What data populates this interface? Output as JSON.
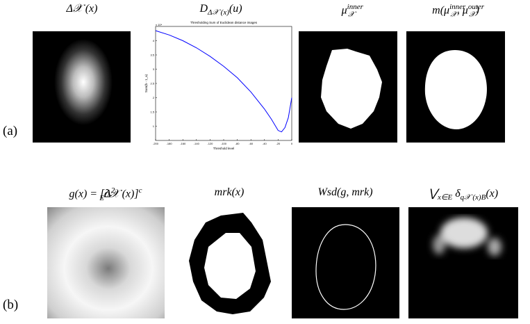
{
  "labels": {
    "a": "(a)",
    "b": "(b)"
  },
  "row_a": [
    {
      "title": [
        {
          "text": "Δ𝒳 ",
          "pos": "base"
        },
        {
          "text": "(x)",
          "pos": "base"
        }
      ]
    },
    {
      "title": [
        {
          "text": "D",
          "pos": "base"
        },
        {
          "text": "Δ𝒳 (x)",
          "pos": "sub"
        },
        {
          "text": "(u)",
          "pos": "base"
        }
      ]
    },
    {
      "title": [
        {
          "text": "μ",
          "pos": "base"
        },
        {
          "text": "inner",
          "pos": "sup"
        },
        {
          "text": "𝒳",
          "pos": "sub"
        }
      ]
    },
    {
      "title": [
        {
          "text": "m(μ",
          "pos": "base"
        },
        {
          "text": "inner",
          "pos": "sup"
        },
        {
          "text": "𝒳",
          "pos": "sub"
        },
        {
          "text": ", μ",
          "pos": "base"
        },
        {
          "text": "outer",
          "pos": "sup"
        },
        {
          "text": "𝒳",
          "pos": "sub"
        },
        {
          "text": ")",
          "pos": "base"
        }
      ]
    }
  ],
  "row_b": [
    {
      "title": [
        {
          "text": "g(x) = [Δ",
          "pos": "base"
        },
        {
          "text": "2",
          "pos": "sup"
        },
        {
          "text": "E",
          "pos": "sub"
        },
        {
          "text": "∂𝒳 (x)]",
          "pos": "base"
        },
        {
          "text": "c",
          "pos": "sup"
        }
      ]
    },
    {
      "title": [
        {
          "text": "mrk(x)",
          "pos": "base"
        }
      ]
    },
    {
      "title": [
        {
          "text": "Wsd(g, mrk)",
          "pos": "base"
        }
      ]
    },
    {
      "title": [
        {
          "text": "⋁",
          "pos": "base"
        },
        {
          "text": "x∈E",
          "pos": "sub"
        },
        {
          "text": " δ",
          "pos": "base"
        },
        {
          "text": "q𝒳 (x)B",
          "pos": "sub"
        },
        {
          "text": "(x)",
          "pos": "base"
        }
      ]
    }
  ],
  "plot": {
    "type": "line",
    "title": "Thresholding Sum of Euclidean distance images",
    "xlabel": "Threshold level",
    "ylabel": "Sum(h - 1_a)",
    "scale_note": "x 10⁴",
    "x": [
      -200,
      -180,
      -160,
      -140,
      -120,
      -100,
      -80,
      -60,
      -40,
      -30,
      -20,
      -15,
      -10,
      -5,
      0
    ],
    "values": [
      4.35,
      4.2,
      4.0,
      3.75,
      3.45,
      3.1,
      2.7,
      2.2,
      1.6,
      1.25,
      0.85,
      0.8,
      0.95,
      1.3,
      2.0
    ],
    "color": "#0000ff",
    "xlim": [
      -200,
      0
    ],
    "xticks": [
      -200,
      -180,
      -160,
      -140,
      -120,
      -100,
      -80,
      -60,
      -40,
      -20,
      0
    ],
    "ylim": [
      0.5,
      4.5
    ],
    "yticks": [
      1,
      1.5,
      2,
      2.5,
      3,
      3.5,
      4
    ]
  }
}
